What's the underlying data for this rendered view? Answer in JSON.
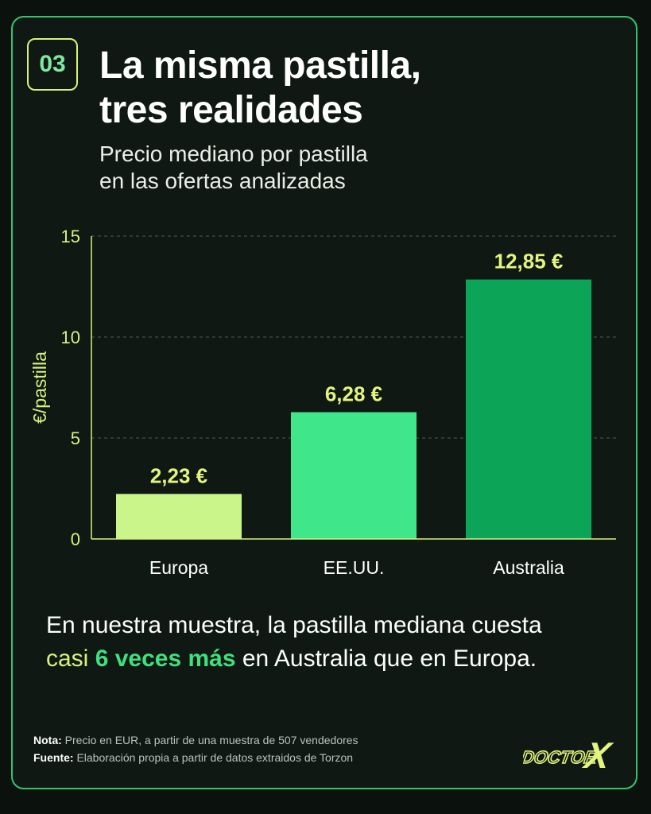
{
  "header": {
    "badge": "03",
    "title_line1": "La misma pastilla,",
    "title_line2": "tres realidades",
    "subtitle_line1": "Precio mediano por pastilla",
    "subtitle_line2": "en las ofertas analizadas"
  },
  "chart_data": {
    "type": "bar",
    "categories": [
      "Europa",
      "EE.UU.",
      "Australia"
    ],
    "values": [
      2.23,
      6.28,
      12.85
    ],
    "value_labels": [
      "2,23 €",
      "6,28 €",
      "12,85 €"
    ],
    "ylabel": "€/pastilla",
    "ylim": [
      0,
      15
    ],
    "yticks": [
      0,
      5,
      10,
      15
    ],
    "grid": true,
    "bar_colors": [
      "#c9f58a",
      "#3fe78a",
      "#0ca557"
    ],
    "label_color": "#e3f57e"
  },
  "takeaway": {
    "line1": "En nuestra muestra, la pastilla mediana cuesta",
    "line2_prefix": "casi ",
    "line2_highlight": "6 veces más",
    "line2_suffix": " en Australia que en Europa."
  },
  "footer": {
    "note_label": "Nota:",
    "note_text": " Precio en EUR, a partir de una muestra de 507 vendedores",
    "source_label": "Fuente:",
    "source_text": " Elaboración propia a partir de datos extraidos de Torzon",
    "logo_text": "DOCTOR X",
    "logo_word": "DOCTOR",
    "logo_letter": "X"
  },
  "colors": {
    "background": "#0f1813",
    "border": "#35c46d",
    "accent_lime": "#d7f27e",
    "accent_green": "#3fe07e"
  }
}
